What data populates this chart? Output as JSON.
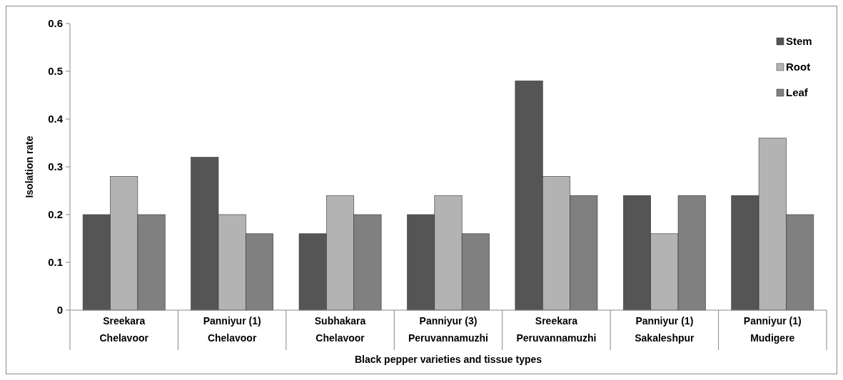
{
  "chart_data": {
    "type": "bar",
    "xlabel": "Black pepper varieties  and tissue types",
    "ylabel": "Isolation rate",
    "categories": [
      "Sreekara\nChelavoor",
      "Panniyur (1)\nChelavoor",
      "Subhakara\nChelavoor",
      "Panniyur (3)\nPeruvannamuzhi",
      "Sreekara\nPeruvannamuzhi",
      "Panniyur (1)\nSakaleshpur",
      "Panniyur (1)\nMudigere"
    ],
    "series": [
      {
        "name": "Stem",
        "color": "#555555",
        "values": [
          0.2,
          0.32,
          0.16,
          0.2,
          0.48,
          0.24,
          0.24
        ]
      },
      {
        "name": "Root",
        "color": "#b3b3b3",
        "values": [
          0.28,
          0.2,
          0.24,
          0.24,
          0.28,
          0.16,
          0.36
        ]
      },
      {
        "name": "Leaf",
        "color": "#808080",
        "values": [
          0.2,
          0.16,
          0.2,
          0.16,
          0.24,
          0.24,
          0.2
        ]
      }
    ],
    "ylim": [
      0,
      0.6
    ],
    "yticks": [
      0,
      0.1,
      0.2,
      0.3,
      0.4,
      0.5,
      0.6
    ],
    "grid": false,
    "legend": "top right"
  }
}
